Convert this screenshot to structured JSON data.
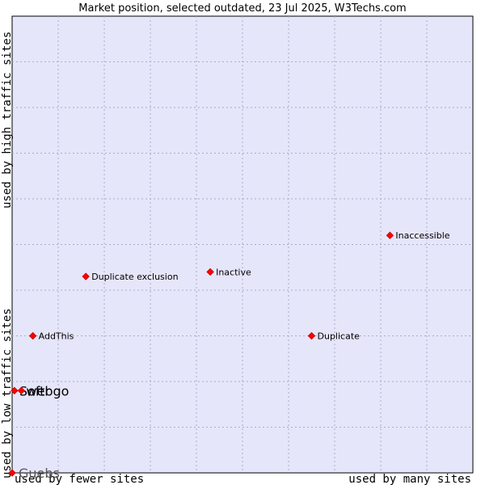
{
  "chart_data": {
    "type": "scatter",
    "title": "Market position, selected outdated, 23 Jul 2025, W3Techs.com",
    "xlabel_left": "used by fewer sites",
    "xlabel_right": "used by many sites",
    "ylabel_bottom": "used by low traffic sites",
    "ylabel_top": "used by high traffic sites",
    "x_scale": "log",
    "y_scale": "linear",
    "grid": true,
    "colors": {
      "plot_background": "#e6e6fa",
      "grid": "#aaaacc",
      "marker": "#ff0000",
      "marker_edge": "#cc0000"
    },
    "points": [
      {
        "name": "Inaccessible",
        "x": 0.82,
        "y": 0.52,
        "style": "small"
      },
      {
        "name": "Inactive",
        "x": 0.43,
        "y": 0.44,
        "style": "small"
      },
      {
        "name": "Duplicate exclusion",
        "x": 0.16,
        "y": 0.43,
        "style": "small"
      },
      {
        "name": "Duplicate",
        "x": 0.65,
        "y": 0.3,
        "style": "small"
      },
      {
        "name": "AddThis",
        "x": 0.045,
        "y": 0.3,
        "style": "small"
      },
      {
        "name": "Softr",
        "x": 0.005,
        "y": 0.18,
        "style": "big"
      },
      {
        "name": "webgo",
        "x": 0.02,
        "y": 0.18,
        "style": "big"
      },
      {
        "name": "Guebs",
        "x": 0.0,
        "y": 0.0,
        "style": "gray"
      }
    ]
  }
}
